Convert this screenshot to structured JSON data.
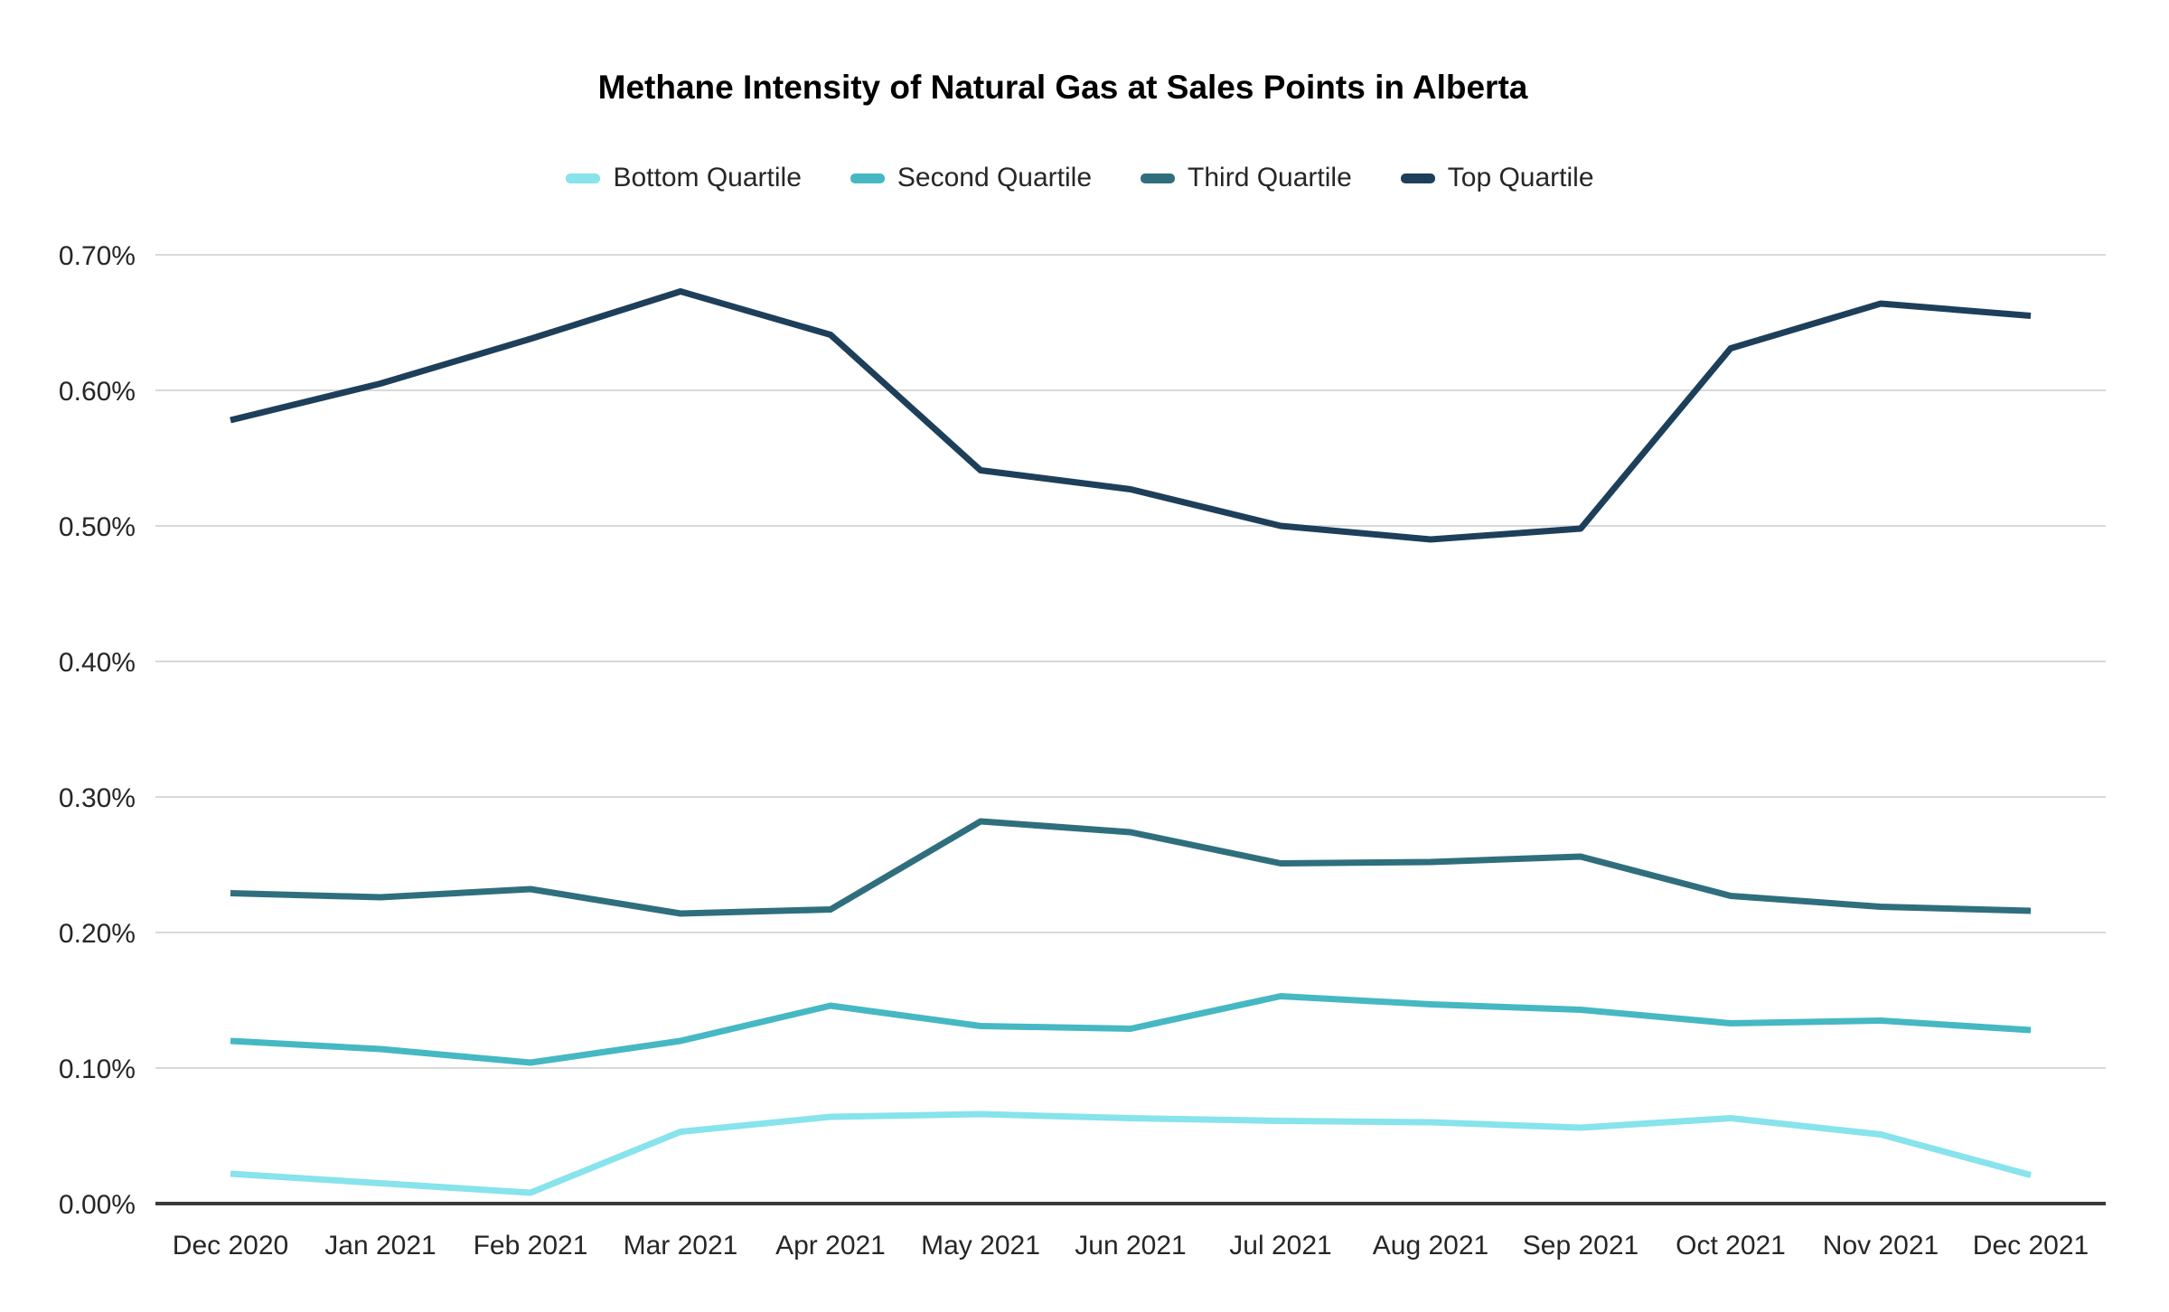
{
  "title": "Methane Intensity of Natural Gas at Sales Points in Alberta",
  "chart_data": {
    "type": "line",
    "title": "Methane Intensity of Natural Gas at Sales Points in Alberta",
    "x": [
      "Dec 2020",
      "Jan 2021",
      "Feb 2021",
      "Mar 2021",
      "Apr 2021",
      "May 2021",
      "Jun 2021",
      "Jul 2021",
      "Aug 2021",
      "Sep 2021",
      "Oct 2021",
      "Nov 2021",
      "Dec 2021"
    ],
    "series": [
      {
        "name": "Bottom Quartile",
        "color": "#87E3EC",
        "values": [
          0.022,
          0.015,
          0.008,
          0.053,
          0.064,
          0.066,
          0.063,
          0.061,
          0.06,
          0.056,
          0.063,
          0.051,
          0.021
        ]
      },
      {
        "name": "Second Quartile",
        "color": "#45B8C3",
        "values": [
          0.12,
          0.114,
          0.104,
          0.12,
          0.146,
          0.131,
          0.129,
          0.153,
          0.147,
          0.143,
          0.133,
          0.135,
          0.128
        ]
      },
      {
        "name": "Third Quartile",
        "color": "#2F6F7D",
        "values": [
          0.229,
          0.226,
          0.232,
          0.214,
          0.217,
          0.282,
          0.274,
          0.251,
          0.252,
          0.256,
          0.227,
          0.219,
          0.216
        ]
      },
      {
        "name": "Top Quartile",
        "color": "#1E3F5A",
        "values": [
          0.578,
          0.605,
          0.638,
          0.673,
          0.641,
          0.541,
          0.527,
          0.5,
          0.49,
          0.498,
          0.631,
          0.664,
          0.655
        ]
      }
    ],
    "unit": "%",
    "xlabel": "",
    "ylabel": "",
    "ylim": [
      0.0,
      0.7
    ],
    "y_tick_step": 0.1,
    "y_tick_labels": [
      "0.00%",
      "0.10%",
      "0.20%",
      "0.30%",
      "0.40%",
      "0.50%",
      "0.60%",
      "0.70%"
    ],
    "grid": "horizontal",
    "legend_position": "top",
    "gridline_color": "#D9D9D9",
    "axis_line_color": "#3B3B3B"
  }
}
